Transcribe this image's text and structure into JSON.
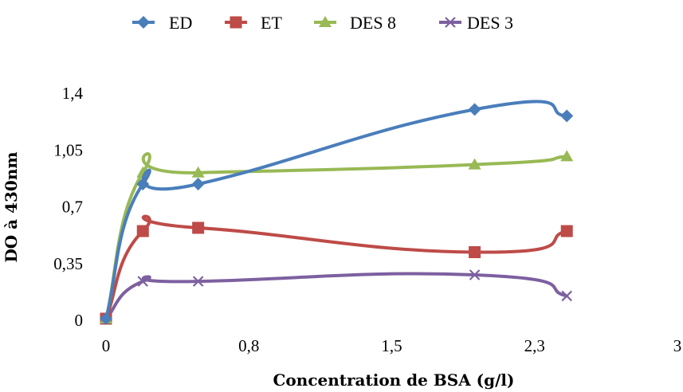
{
  "chart_data": {
    "type": "line",
    "title": "",
    "xlabel": "Concentration de BSA (g/l)",
    "ylabel": "DO à 430nm",
    "xlim": [
      0,
      3.1
    ],
    "ylim": [
      0,
      1.4
    ],
    "x_tick_labels": [
      "0",
      "0,8",
      "1,5",
      "2,3",
      "3"
    ],
    "x_tick_values": [
      0,
      0.775,
      1.55,
      2.325,
      3.1
    ],
    "y_tick_labels": [
      "0",
      "0,35",
      "0,7",
      "1,05",
      "1,4"
    ],
    "y_tick_values": [
      0,
      0.35,
      0.7,
      1.05,
      1.4
    ],
    "x": [
      0,
      0.2,
      0.5,
      2.0,
      2.5
    ],
    "series": [
      {
        "name": "ED",
        "values": [
          0.01,
          0.84,
          0.84,
          1.3,
          1.26
        ],
        "color": "#4a7ebb",
        "marker": "diamond"
      },
      {
        "name": "ET",
        "values": [
          0.01,
          0.55,
          0.57,
          0.42,
          0.55
        ],
        "color": "#be4b48",
        "marker": "square"
      },
      {
        "name": "DES 8",
        "values": [
          0.01,
          0.91,
          0.91,
          0.96,
          1.01
        ],
        "color": "#98b954",
        "marker": "triangle"
      },
      {
        "name": "DES 3",
        "values": [
          0.01,
          0.24,
          0.24,
          0.28,
          0.15
        ],
        "color": "#7d60a0",
        "marker": "x"
      }
    ],
    "grid": false,
    "legend_position": "top"
  }
}
